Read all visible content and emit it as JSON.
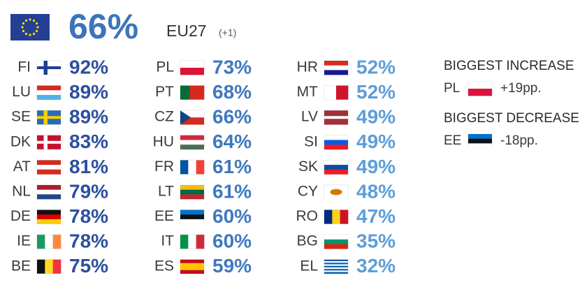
{
  "header": {
    "value": "66%",
    "label": "EU27",
    "note": "(+1)"
  },
  "countries": [
    {
      "code": "FI",
      "value": "92%"
    },
    {
      "code": "LU",
      "value": "89%"
    },
    {
      "code": "SE",
      "value": "89%"
    },
    {
      "code": "DK",
      "value": "83%"
    },
    {
      "code": "AT",
      "value": "81%"
    },
    {
      "code": "NL",
      "value": "79%"
    },
    {
      "code": "DE",
      "value": "78%"
    },
    {
      "code": "IE",
      "value": "78%"
    },
    {
      "code": "BE",
      "value": "75%"
    },
    {
      "code": "PL",
      "value": "73%"
    },
    {
      "code": "PT",
      "value": "68%"
    },
    {
      "code": "CZ",
      "value": "66%"
    },
    {
      "code": "HU",
      "value": "64%"
    },
    {
      "code": "FR",
      "value": "61%"
    },
    {
      "code": "LT",
      "value": "61%"
    },
    {
      "code": "EE",
      "value": "60%"
    },
    {
      "code": "IT",
      "value": "60%"
    },
    {
      "code": "ES",
      "value": "59%"
    },
    {
      "code": "HR",
      "value": "52%"
    },
    {
      "code": "MT",
      "value": "52%"
    },
    {
      "code": "LV",
      "value": "49%"
    },
    {
      "code": "SI",
      "value": "49%"
    },
    {
      "code": "SK",
      "value": "49%"
    },
    {
      "code": "CY",
      "value": "48%"
    },
    {
      "code": "RO",
      "value": "47%"
    },
    {
      "code": "BG",
      "value": "35%"
    },
    {
      "code": "EL",
      "value": "32%"
    }
  ],
  "biggest_increase": {
    "title": "BIGGEST INCREASE",
    "code": "PL",
    "change": "+19pp."
  },
  "biggest_decrease": {
    "title": "BIGGEST DECREASE",
    "code": "EE",
    "change": "-18pp."
  }
}
